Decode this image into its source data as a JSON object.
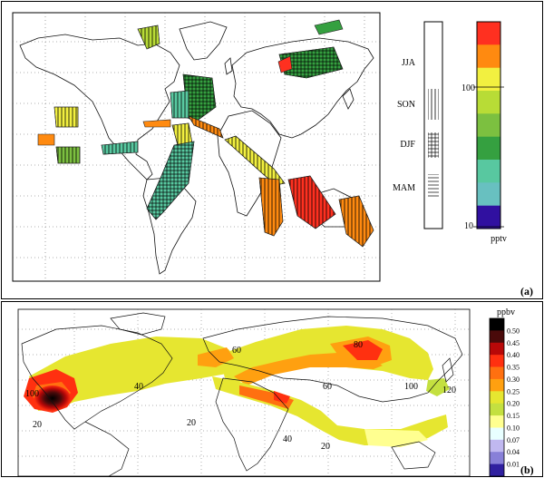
{
  "panel_a": {
    "label": "(a)",
    "season_bar": {
      "labels": [
        "JJA",
        "SON",
        "DJF",
        "MAM"
      ]
    },
    "colorbar": {
      "unit": "pptv",
      "ticks": [
        "100",
        "10"
      ],
      "colors": [
        "#ff3020",
        "#ff8a10",
        "#f2f040",
        "#b8dc36",
        "#7cc040",
        "#35a040",
        "#58c8a0",
        "#68c0c0",
        "#3010a0"
      ]
    }
  },
  "panel_b": {
    "label": "(b)",
    "colorbar": {
      "unit": "ppbv",
      "levels": [
        "0.50",
        "0.45",
        "0.40",
        "0.35",
        "0.30",
        "0.25",
        "0.20",
        "0.15",
        "0.10",
        "0.07",
        "0.04",
        "0.01"
      ],
      "colors": [
        "#000000",
        "#4a0a0a",
        "#b80808",
        "#ff3010",
        "#ff7010",
        "#ffa010",
        "#e6e630",
        "#c4e040",
        "#ffff90",
        "#e8ffff",
        "#c0b8f0",
        "#8880d8",
        "#3020a0"
      ]
    },
    "map_labels": [
      "100",
      "20",
      "40",
      "60",
      "60",
      "80",
      "100",
      "120",
      "20",
      "40",
      "20"
    ]
  },
  "colors": {
    "frame": "#000000",
    "grid": "#555555",
    "coast": "#111111"
  }
}
